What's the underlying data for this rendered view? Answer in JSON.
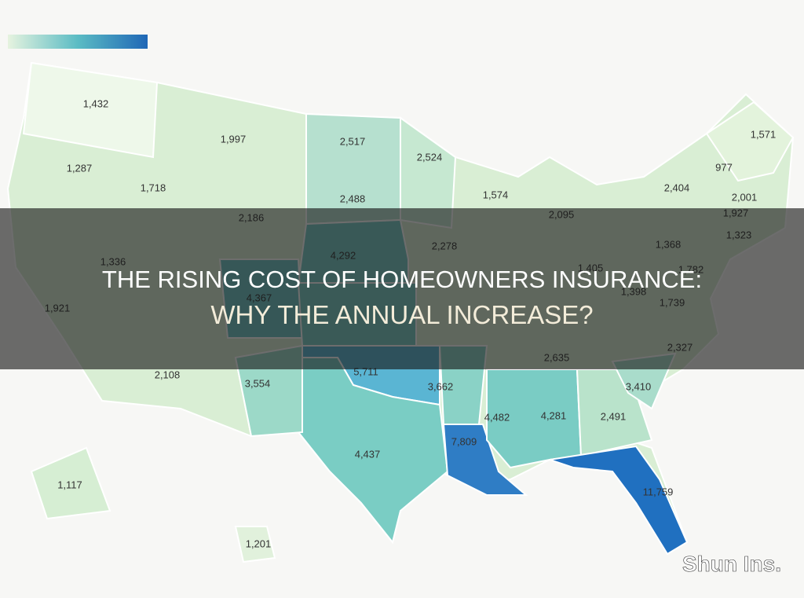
{
  "map": {
    "labels": [
      "1,432",
      "1,997",
      "2,517",
      "2,524",
      "1,571",
      "977",
      "1,287",
      "1,718",
      "2,488",
      "1,574",
      "2,404",
      "2,001",
      "2,186",
      "2,095",
      "1,927",
      "1,323",
      "2,278",
      "4,292",
      "1,368",
      "1,336",
      "1,405",
      "1,782",
      "4,367",
      "1,398",
      "1,739",
      "1,921",
      "2,327",
      "2,635",
      "2,108",
      "3,554",
      "5,711",
      "3,662",
      "3,410",
      "4,482",
      "4,281",
      "2,491",
      "7,809",
      "4,437",
      "1,117",
      "11,759",
      "1,201"
    ]
  },
  "title": {
    "line1": "THE RISING COST OF HOMEOWNERS INSURANCE:",
    "line2": "WHY THE ANNUAL INCREASE?"
  },
  "brand": "Shun Ins."
}
